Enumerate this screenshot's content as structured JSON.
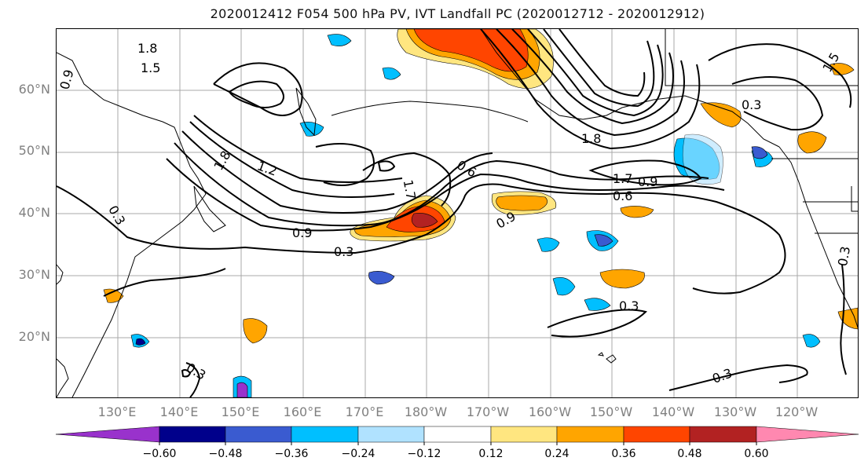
{
  "title": "2020012412 F054 500 hPa PV, IVT Landfall PC (2020012712 - 2020012912)",
  "map": {
    "lat_labels": [
      "60°N",
      "50°N",
      "40°N",
      "30°N",
      "20°N"
    ],
    "lon_labels": [
      "130°E",
      "140°E",
      "150°E",
      "160°E",
      "170°E",
      "180°W",
      "170°W",
      "160°W",
      "150°W",
      "140°W",
      "130°W",
      "120°W"
    ],
    "contour_labels": [
      "1.8",
      "1.5",
      "0.9",
      "0.3",
      "1.8",
      "1.2",
      "1.7",
      "0.6",
      "0.9",
      "0.3",
      "0.6",
      "0.9",
      "1.7",
      "1.8",
      "0.3",
      "0.3",
      "0.3",
      "0.3",
      "0.3",
      "0.9",
      "1.5"
    ],
    "colors": {
      "neg_060": "#9932CC",
      "neg_048": "#00008B",
      "neg_036": "#3A5BD0",
      "neg_024": "#00BFFF",
      "neg_012": "#B0E2FF",
      "zero": "#FFFFFF",
      "pos_012": "#FFE680",
      "pos_024": "#FFA500",
      "pos_036": "#FF4500",
      "pos_048": "#B22222",
      "pos_060": "#FF88B0"
    }
  },
  "colorbar": {
    "tick_labels": [
      "−0.60",
      "−0.48",
      "−0.36",
      "−0.24",
      "−0.12",
      "0.12",
      "0.24",
      "0.36",
      "0.48",
      "0.60"
    ],
    "segment_colors": [
      "#9932CC",
      "#00008B",
      "#3A5BD0",
      "#00BFFF",
      "#B0E2FF",
      "#FFFFFF",
      "#FFE680",
      "#FFA500",
      "#FF4500",
      "#B22222",
      "#FF88B0"
    ]
  }
}
